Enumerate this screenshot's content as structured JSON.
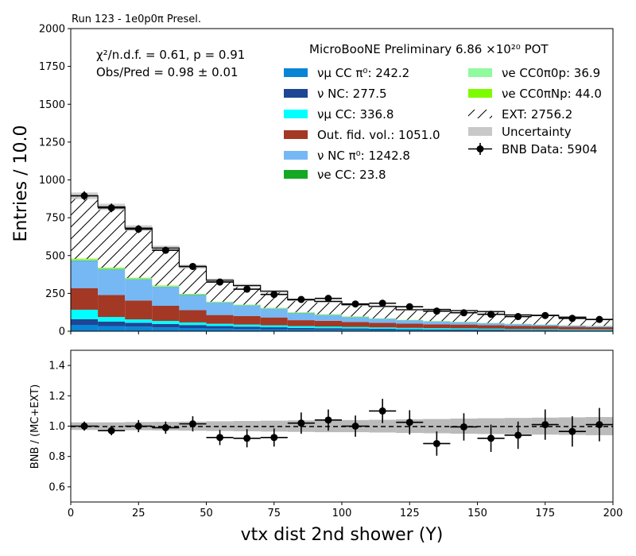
{
  "header": {
    "run_label": "Run 123 - 1e0p0π Presel."
  },
  "chart_data": [
    {
      "type": "bar",
      "subtype": "stacked-histogram",
      "title": "",
      "xlabel": "",
      "ylabel": "Entries / 10.0",
      "xlim": [
        0,
        200
      ],
      "ylim": [
        0,
        2000
      ],
      "bin_edges": [
        0,
        10,
        20,
        30,
        40,
        50,
        60,
        70,
        80,
        90,
        100,
        110,
        120,
        130,
        140,
        150,
        160,
        170,
        180,
        190,
        200
      ],
      "x_ticks": [
        "0",
        "25",
        "50",
        "75",
        "100",
        "125",
        "150",
        "175",
        "200"
      ],
      "y_ticks": [
        "0",
        "250",
        "500",
        "750",
        "1000",
        "1250",
        "1500",
        "1750",
        "2000"
      ],
      "grid": false,
      "stats_text": {
        "chi2": "χ²/n.d.f. = 0.61, p = 0.91",
        "obs_pred": "Obs/Pred = 0.98 ± 0.01"
      },
      "legend_title": "MicroBooNE Preliminary 6.86 ×10²⁰ POT",
      "legend_placement": "top-right",
      "legend": {
        "left": [
          {
            "label": "νμ CC π⁰: 242.2",
            "color": "#0a85d6",
            "kind": "patch"
          },
          {
            "label": "ν NC: 277.5",
            "color": "#1f4595",
            "kind": "patch"
          },
          {
            "label": "νμ CC: 336.8",
            "color": "#00ffff",
            "kind": "patch"
          },
          {
            "label": "Out. fid. vol.: 1051.0",
            "color": "#a33825",
            "kind": "patch"
          },
          {
            "label": "ν NC π⁰: 1242.8",
            "color": "#76b8f4",
            "kind": "patch"
          },
          {
            "label": "νe CC: 23.8",
            "color": "#15a823",
            "kind": "patch"
          }
        ],
        "right": [
          {
            "label": "νe CC0π0p: 36.9",
            "color": "#90fa9f",
            "kind": "patch"
          },
          {
            "label": "νe CC0πNp: 44.0",
            "color": "#7dfb00",
            "kind": "patch"
          },
          {
            "label": "EXT: 2756.2",
            "color": "#ffffff",
            "kind": "hatch"
          },
          {
            "label": "Uncertainty",
            "color": "#c8c8c8",
            "kind": "patch"
          },
          {
            "label": "BNB Data: 5904",
            "color": "#000000",
            "kind": "errorbar"
          }
        ]
      },
      "series": [
        {
          "name": "νμ CC π⁰",
          "color": "#0a85d6",
          "values": [
            42,
            34,
            30,
            25,
            21,
            17,
            15,
            13,
            11,
            10,
            9,
            8,
            7,
            6,
            6,
            5,
            4,
            4,
            3,
            3
          ]
        },
        {
          "name": "ν NC",
          "color": "#1f4595",
          "values": [
            38,
            30,
            26,
            23,
            20,
            17,
            15,
            13,
            11,
            10,
            9,
            8,
            7,
            6,
            6,
            5,
            4,
            4,
            3,
            3
          ]
        },
        {
          "name": "νμ CC",
          "color": "#00ffff",
          "values": [
            62,
            30,
            22,
            20,
            17,
            15,
            14,
            13,
            12,
            11,
            10,
            9,
            8,
            8,
            7,
            7,
            6,
            6,
            5,
            5
          ]
        },
        {
          "name": "Out. fid. vol.",
          "color": "#a33825",
          "values": [
            143,
            146,
            125,
            100,
            81,
            58,
            57,
            52,
            39,
            38,
            33,
            30,
            28,
            26,
            25,
            23,
            22,
            20,
            18,
            16
          ]
        },
        {
          "name": "ν NC π⁰",
          "color": "#76b8f4",
          "values": [
            180,
            168,
            140,
            125,
            100,
            83,
            70,
            58,
            47,
            38,
            32,
            27,
            22,
            18,
            15,
            13,
            11,
            9,
            8,
            7
          ]
        },
        {
          "name": "νe CC",
          "color": "#15a823",
          "values": [
            3,
            3,
            2,
            2,
            2,
            1,
            1,
            1,
            1,
            1,
            1,
            1,
            1,
            1,
            1,
            0,
            0,
            0,
            0,
            0
          ]
        },
        {
          "name": "νe CC0π0p",
          "color": "#90fa9f",
          "values": [
            5,
            4,
            4,
            3,
            3,
            2,
            2,
            2,
            2,
            2,
            2,
            1,
            1,
            1,
            1,
            1,
            1,
            0,
            0,
            0
          ]
        },
        {
          "name": "νe CC0πNp",
          "color": "#7dfb00",
          "values": [
            6,
            5,
            4,
            4,
            3,
            2,
            2,
            2,
            2,
            2,
            2,
            1,
            1,
            1,
            1,
            1,
            1,
            1,
            1,
            1
          ]
        },
        {
          "name": "EXT",
          "color": "#ffffff",
          "hatch": true,
          "values": [
            416,
            402,
            329,
            248,
            180,
            142,
            126,
            110,
            82,
            85,
            77,
            79,
            67,
            77,
            74,
            75,
            59,
            61,
            55,
            42
          ]
        }
      ],
      "uncertainty": [
        22,
        21,
        18,
        15,
        13,
        11,
        10,
        9,
        8,
        8,
        7,
        7,
        7,
        7,
        6,
        6,
        6,
        6,
        5,
        5
      ],
      "data_points": {
        "name": "BNB Data",
        "x": [
          5,
          15,
          25,
          35,
          45,
          55,
          65,
          75,
          85,
          95,
          105,
          115,
          125,
          135,
          145,
          155,
          165,
          175,
          185,
          195
        ],
        "y": [
          895,
          815,
          675,
          535,
          428,
          325,
          278,
          243,
          210,
          217,
          180,
          185,
          162,
          133,
          122,
          112,
          97,
          104,
          85,
          78
        ],
        "x_err": 5
      }
    },
    {
      "type": "scatter",
      "subtype": "ratio",
      "title": "",
      "xlabel": "vtx dist 2nd shower (Y)",
      "ylabel": "BNB / (MC+EXT)",
      "xlim": [
        0,
        200
      ],
      "ylim": [
        0.5,
        1.5
      ],
      "x_ticks": [
        "0",
        "25",
        "50",
        "75",
        "100",
        "125",
        "150",
        "175",
        "200"
      ],
      "y_ticks": [
        "0.6",
        "0.8",
        "1.0",
        "1.2",
        "1.4"
      ],
      "reference_line": 1.0,
      "x": [
        5,
        15,
        25,
        35,
        45,
        55,
        65,
        75,
        85,
        95,
        105,
        115,
        125,
        135,
        145,
        155,
        165,
        175,
        185,
        195
      ],
      "ratio": [
        1.0,
        0.97,
        1.0,
        0.99,
        1.015,
        0.925,
        0.92,
        0.925,
        1.02,
        1.04,
        1.0,
        1.1,
        1.025,
        0.885,
        0.995,
        0.92,
        0.94,
        1.01,
        0.965,
        1.01
      ],
      "ratio_err": [
        0.03,
        0.03,
        0.04,
        0.04,
        0.05,
        0.05,
        0.06,
        0.06,
        0.07,
        0.07,
        0.07,
        0.08,
        0.08,
        0.08,
        0.09,
        0.09,
        0.09,
        0.1,
        0.1,
        0.11
      ],
      "band_err": [
        0.025,
        0.025,
        0.027,
        0.028,
        0.03,
        0.032,
        0.034,
        0.036,
        0.038,
        0.04,
        0.04,
        0.042,
        0.045,
        0.047,
        0.05,
        0.052,
        0.054,
        0.056,
        0.058,
        0.06
      ]
    }
  ]
}
